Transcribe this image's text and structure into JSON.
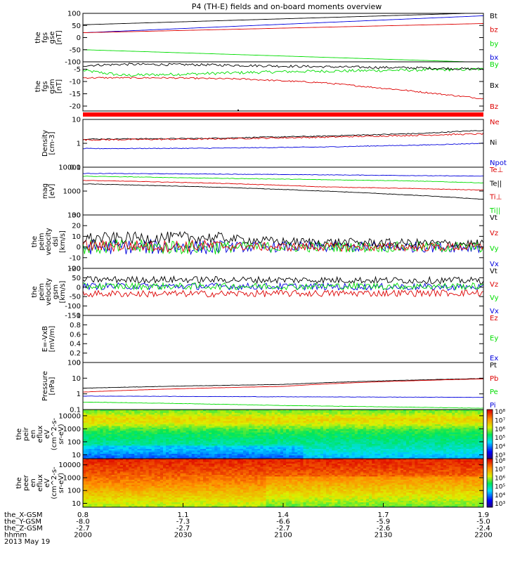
{
  "title": "P4 (TH-E) fields and on-board moments overview",
  "colors": {
    "black": "#000000",
    "red": "#dd0000",
    "green": "#00dd00",
    "blue": "#0000dd",
    "redBar": "#ff0000"
  },
  "chart_data": [
    {
      "id": "fgs-gse",
      "type": "line",
      "ylabel": [
        "the",
        "fgs",
        "gse",
        "[nT]"
      ],
      "ylim": [
        -100,
        100
      ],
      "yticks": [
        100,
        50,
        0,
        -50,
        -100
      ],
      "legend": [
        {
          "label": "Bt",
          "color": "#000000"
        },
        {
          "label": "bz",
          "color": "#dd0000"
        },
        {
          "label": "by",
          "color": "#00dd00"
        },
        {
          "label": "bx",
          "color": "#0000dd"
        }
      ],
      "series": [
        {
          "color": "#000000",
          "x": [
            0,
            1
          ],
          "y": [
            53,
            102
          ],
          "noise": 0
        },
        {
          "color": "#0000dd",
          "x": [
            0,
            1
          ],
          "y": [
            20,
            90
          ],
          "noise": 0
        },
        {
          "color": "#dd0000",
          "x": [
            0,
            1
          ],
          "y": [
            20,
            58
          ],
          "noise": 0
        },
        {
          "color": "#00dd00",
          "x": [
            0,
            1
          ],
          "y": [
            -50,
            -102
          ],
          "noise": 0
        }
      ]
    },
    {
      "id": "fgs-gsm",
      "type": "line",
      "ylabel": [
        "the",
        "fgs",
        "gsm",
        "[nT]"
      ],
      "ylim": [
        -22,
        -2
      ],
      "yticks": [
        -5,
        -10,
        -15,
        -20
      ],
      "legend": [
        {
          "label": "By",
          "color": "#00dd00"
        },
        {
          "label": "Bx",
          "color": "#000000"
        },
        {
          "label": "Bz",
          "color": "#dd0000"
        }
      ],
      "series": [
        {
          "color": "#00dd00",
          "x": [
            0,
            0.1,
            0.25,
            0.5,
            0.75,
            1
          ],
          "y": [
            -5.5,
            -7.5,
            -7,
            -6,
            -5.5,
            -5
          ],
          "noise": 0.6
        },
        {
          "color": "#000000",
          "x": [
            0,
            0.1,
            0.3,
            0.6,
            0.85,
            1
          ],
          "y": [
            -3.5,
            -3,
            -3.2,
            -4,
            -4.5,
            -5
          ],
          "noise": 0.5
        },
        {
          "color": "#dd0000",
          "x": [
            0,
            0.2,
            0.4,
            0.6,
            0.8,
            1
          ],
          "y": [
            -8.5,
            -8.5,
            -9,
            -10.5,
            -13.5,
            -17
          ],
          "noise": 0.3
        }
      ]
    },
    {
      "id": "density",
      "type": "line",
      "log": true,
      "ylabel": [
        "Density",
        "[cm-3]"
      ],
      "ylim": [
        0.1,
        10
      ],
      "yticks": [
        10.0,
        1.0,
        0.1
      ],
      "legend": [
        {
          "label": "Ne",
          "color": "#dd0000"
        },
        {
          "label": "Ni",
          "color": "#000000"
        },
        {
          "label": "Npot",
          "color": "#0000dd"
        }
      ],
      "series": [
        {
          "color": "#000000",
          "x": [
            0,
            0.3,
            0.6,
            0.85,
            1
          ],
          "y": [
            1.5,
            1.6,
            2.0,
            2.6,
            3.5
          ],
          "noise": 0.02
        },
        {
          "color": "#dd0000",
          "x": [
            0,
            0.3,
            0.6,
            0.85,
            1
          ],
          "y": [
            1.4,
            1.5,
            1.8,
            2.2,
            2.5
          ],
          "noise": 0.03
        },
        {
          "color": "#0000dd",
          "x": [
            0,
            0.3,
            0.6,
            0.85,
            1
          ],
          "y": [
            0.6,
            0.62,
            0.7,
            0.85,
            1.0
          ],
          "noise": 0.015
        }
      ]
    },
    {
      "id": "temperature",
      "type": "line",
      "log": true,
      "ylabel": [
        "mag",
        "[eV]"
      ],
      "ylim": [
        100,
        10000
      ],
      "yticks": [
        10000,
        1000,
        100
      ],
      "legend": [
        {
          "label": "Te⊥",
          "color": "#dd0000"
        },
        {
          "label": "Te||",
          "color": "#000000"
        },
        {
          "label": "Ti⊥",
          "color": "#dd0000"
        },
        {
          "label": "Ti||",
          "color": "#00dd00"
        }
      ],
      "series": [
        {
          "color": "#0000dd",
          "x": [
            0,
            0.3,
            0.6,
            0.8,
            1
          ],
          "y": [
            5500,
            5200,
            4800,
            4500,
            4200
          ],
          "noise": 0.01
        },
        {
          "color": "#00dd00",
          "x": [
            0,
            0.3,
            0.6,
            0.8,
            1
          ],
          "y": [
            4200,
            3500,
            3000,
            2700,
            2200
          ],
          "noise": 0.01
        },
        {
          "color": "#dd0000",
          "x": [
            0,
            0.3,
            0.6,
            0.8,
            1
          ],
          "y": [
            2800,
            2200,
            1500,
            1300,
            1100
          ],
          "noise": 0.01
        },
        {
          "color": "#000000",
          "x": [
            0,
            0.3,
            0.6,
            0.8,
            1
          ],
          "y": [
            2000,
            1500,
            1000,
            700,
            450
          ],
          "noise": 0.01
        }
      ]
    },
    {
      "id": "peim-dsl",
      "type": "line",
      "ylabel": [
        "the",
        "peim",
        "velocity",
        "dsl",
        "[km/s]"
      ],
      "ylim": [
        -20,
        30
      ],
      "yticks": [
        30,
        20,
        10,
        0,
        -10,
        -20
      ],
      "legend": [
        {
          "label": "Vt",
          "color": "#000000"
        },
        {
          "label": "Vz",
          "color": "#dd0000"
        },
        {
          "label": "Vy",
          "color": "#00dd00"
        },
        {
          "label": "Vx",
          "color": "#0000dd"
        }
      ],
      "series": [
        {
          "color": "#0000dd",
          "x": [
            0,
            0.3,
            0.5,
            1
          ],
          "y": [
            0,
            0,
            0,
            0
          ],
          "noise": 5
        },
        {
          "color": "#00dd00",
          "x": [
            0,
            0.3,
            0.5,
            1
          ],
          "y": [
            0,
            0,
            0,
            0
          ],
          "noise": 5
        },
        {
          "color": "#dd0000",
          "x": [
            0,
            0.3,
            0.5,
            1
          ],
          "y": [
            1,
            1,
            0,
            0
          ],
          "noise": 4
        },
        {
          "color": "#000000",
          "x": [
            0,
            0.3,
            0.5,
            1
          ],
          "y": [
            8,
            9,
            5,
            3
          ],
          "noise": 4
        }
      ]
    },
    {
      "id": "peim-gsm",
      "type": "line",
      "ylabel": [
        "the",
        "peim",
        "velocity",
        "gsm",
        "[km/s]"
      ],
      "ylim": [
        -150,
        100
      ],
      "yticks": [
        100,
        50,
        0,
        -50,
        -100,
        -150
      ],
      "legend": [
        {
          "label": "Vt",
          "color": "#000000"
        },
        {
          "label": "Vz",
          "color": "#dd0000"
        },
        {
          "label": "Vy",
          "color": "#00dd00"
        },
        {
          "label": "Vx",
          "color": "#0000dd"
        }
      ],
      "series": [
        {
          "color": "#000000",
          "x": [
            0,
            0.3,
            1
          ],
          "y": [
            40,
            40,
            35
          ],
          "noise": 18
        },
        {
          "color": "#0000dd",
          "x": [
            0,
            0.3,
            1
          ],
          "y": [
            5,
            5,
            0
          ],
          "noise": 18
        },
        {
          "color": "#00dd00",
          "x": [
            0,
            0.3,
            1
          ],
          "y": [
            5,
            5,
            5
          ],
          "noise": 18
        },
        {
          "color": "#dd0000",
          "x": [
            0,
            0.3,
            1
          ],
          "y": [
            -35,
            -35,
            -30
          ],
          "noise": 18
        }
      ]
    },
    {
      "id": "efield",
      "type": "line",
      "ylabel": [
        "E=-VxB",
        "[mV/m]"
      ],
      "ylim": [
        0,
        1
      ],
      "yticks": [
        1.0,
        0.8,
        0.6,
        0.4,
        0.2,
        0.0
      ],
      "legend": [
        {
          "label": "Ez",
          "color": "#dd0000"
        },
        {
          "label": "Ey",
          "color": "#00dd00"
        },
        {
          "label": "Ex",
          "color": "#0000dd"
        }
      ],
      "series": []
    },
    {
      "id": "pressure",
      "type": "line",
      "log": true,
      "ylabel": [
        "Pressure",
        "[nPa]"
      ],
      "ylim": [
        0.1,
        100
      ],
      "yticks": [
        100.0,
        10.0,
        1.0,
        0.1
      ],
      "legend": [
        {
          "label": "Pt",
          "color": "#000000"
        },
        {
          "label": "Pb",
          "color": "#dd0000"
        },
        {
          "label": "Pe",
          "color": "#00dd00"
        },
        {
          "label": "Pi",
          "color": "#0000dd"
        }
      ],
      "series": [
        {
          "color": "#000000",
          "x": [
            0,
            0.5,
            1
          ],
          "y": [
            2.3,
            4.0,
            9.5
          ],
          "noise": 0.01
        },
        {
          "color": "#dd0000",
          "x": [
            0,
            0.5,
            1
          ],
          "y": [
            1.3,
            3.0,
            9.0
          ],
          "noise": 0.005
        },
        {
          "color": "#0000dd",
          "x": [
            0,
            0.5,
            1
          ],
          "y": [
            0.72,
            0.65,
            0.6
          ],
          "noise": 0.01
        },
        {
          "color": "#00dd00",
          "x": [
            0,
            0.5,
            1
          ],
          "y": [
            0.3,
            0.18,
            0.12
          ],
          "noise": 0.01
        }
      ]
    },
    {
      "id": "peir-eflux",
      "type": "heatmap",
      "log": true,
      "ylabel": [
        "the",
        "peir",
        "en",
        "eflux",
        "eV",
        "(cm^2-s-",
        "sr-eV)"
      ],
      "ylim": [
        5,
        30000
      ],
      "yticks": [
        10000,
        1000,
        100,
        10
      ],
      "colorbar": {
        "labels": [
          "10⁸",
          "10⁷",
          "10⁶",
          "10⁵",
          "10⁴",
          "10³"
        ]
      }
    },
    {
      "id": "peer-eflux",
      "type": "heatmap",
      "log": true,
      "ylabel": [
        "the",
        "peer",
        "en",
        "eflux",
        "eV",
        "(cm^2-s-",
        "sr-eV)"
      ],
      "ylim": [
        5,
        30000
      ],
      "yticks": [
        10000,
        1000,
        100,
        10
      ],
      "colorbar": {
        "labels": [
          "10⁸",
          "10⁷",
          "10⁶",
          "10⁵",
          "10⁴",
          "10³"
        ]
      }
    }
  ],
  "bottom": {
    "row_labels": [
      "the_X-GSM",
      "the_Y-GSM",
      "the_Z-GSM",
      "hhmm",
      "2013 May 19"
    ],
    "columns": [
      {
        "x": "0.8",
        "y": "-8.0",
        "z": "-2.7",
        "t": "2000"
      },
      {
        "x": "1.1",
        "y": "-7.3",
        "z": "-2.7",
        "t": "2030"
      },
      {
        "x": "1.4",
        "y": "-6.6",
        "z": "-2.7",
        "t": "2100"
      },
      {
        "x": "1.7",
        "y": "-5.9",
        "z": "-2.6",
        "t": "2130"
      },
      {
        "x": "1.9",
        "y": "-5.0",
        "z": "-2.4",
        "t": "2200"
      }
    ]
  }
}
